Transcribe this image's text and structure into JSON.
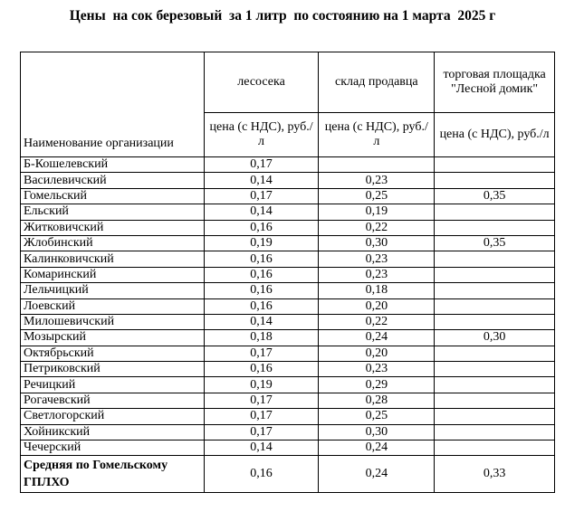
{
  "title": "Цены  на сок березовый  за 1 литр  по состоянию на 1 марта  2025 г",
  "headers": {
    "name": "Наименование организации",
    "col1": "лесосека",
    "col2": "склад продавца",
    "col3": "торговая площадка \"Лесной домик\"",
    "unit": "цена (с НДС), руб./л"
  },
  "rows": [
    {
      "name": "Б-Кошелевский",
      "c1": "0,17",
      "c2": "",
      "c3": ""
    },
    {
      "name": "Василевичский",
      "c1": "0,14",
      "c2": "0,23",
      "c3": ""
    },
    {
      "name": "Гомельский",
      "c1": "0,17",
      "c2": "0,25",
      "c3": "0,35"
    },
    {
      "name": "Ельский",
      "c1": "0,14",
      "c2": "0,19",
      "c3": ""
    },
    {
      "name": "Житковичский",
      "c1": "0,16",
      "c2": "0,22",
      "c3": ""
    },
    {
      "name": "Жлобинский",
      "c1": "0,19",
      "c2": "0,30",
      "c3": "0,35"
    },
    {
      "name": "Калинковичский",
      "c1": "0,16",
      "c2": "0,23",
      "c3": ""
    },
    {
      "name": "Комаринский",
      "c1": "0,16",
      "c2": "0,23",
      "c3": ""
    },
    {
      "name": "Лельчицкий",
      "c1": "0,16",
      "c2": "0,18",
      "c3": ""
    },
    {
      "name": "Лоевский",
      "c1": "0,16",
      "c2": "0,20",
      "c3": ""
    },
    {
      "name": "Милошевичский",
      "c1": "0,14",
      "c2": "0,22",
      "c3": ""
    },
    {
      "name": "Мозырский",
      "c1": "0,18",
      "c2": "0,24",
      "c3": "0,30"
    },
    {
      "name": "Октябрьский",
      "c1": "0,17",
      "c2": "0,20",
      "c3": ""
    },
    {
      "name": "Петриковский",
      "c1": "0,16",
      "c2": "0,23",
      "c3": ""
    },
    {
      "name": "Речицкий",
      "c1": "0,19",
      "c2": "0,29",
      "c3": ""
    },
    {
      "name": "Рогачевский",
      "c1": "0,17",
      "c2": "0,28",
      "c3": ""
    },
    {
      "name": "Светлогорский",
      "c1": "0,17",
      "c2": "0,25",
      "c3": ""
    },
    {
      "name": "Хойникский",
      "c1": "0,17",
      "c2": "0,30",
      "c3": ""
    },
    {
      "name": "Чечерский",
      "c1": "0,14",
      "c2": "0,24",
      "c3": ""
    }
  ],
  "total": {
    "name": "Средняя по Гомельскому ГПЛХО",
    "c1": "0,16",
    "c2": "0,24",
    "c3": "0,33"
  }
}
